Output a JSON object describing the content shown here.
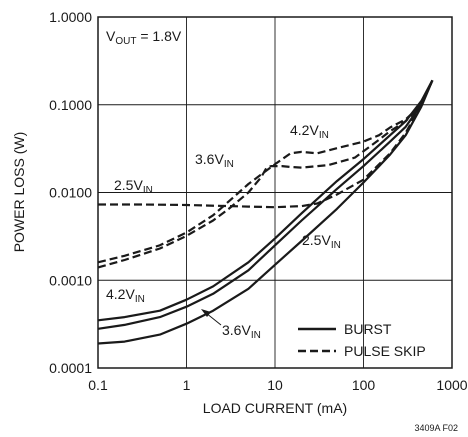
{
  "chart_data": {
    "type": "line",
    "title": "",
    "xlabel": "LOAD CURRENT (mA)",
    "ylabel": "POWER LOSS (W)",
    "x_scale": "log",
    "y_scale": "log",
    "xlim": [
      0.1,
      1000
    ],
    "ylim": [
      0.0001,
      1
    ],
    "x_ticks": [
      "0.1",
      "1",
      "10",
      "100",
      "1000"
    ],
    "y_ticks": [
      "0.0001",
      "0.0010",
      "0.0100",
      "0.1000",
      "1.0000"
    ],
    "grid": true,
    "line_color": "#1a1a1a",
    "condition": {
      "main": "V",
      "sub": "OUT",
      "rest": " = 1.8V"
    },
    "legend": {
      "placement": "bottom-right",
      "entries": [
        {
          "label": "BURST",
          "style": "solid"
        },
        {
          "label": "PULSE SKIP",
          "style": "dashed"
        }
      ]
    },
    "series": [
      {
        "mode": "BURST",
        "vin": "4.2V",
        "style": "solid",
        "points": [
          [
            0.1,
            0.00035
          ],
          [
            0.2,
            0.00038
          ],
          [
            0.5,
            0.00045
          ],
          [
            1,
            0.0006
          ],
          [
            2,
            0.00085
          ],
          [
            5,
            0.0016
          ],
          [
            10,
            0.003
          ],
          [
            20,
            0.0058
          ],
          [
            50,
            0.0135
          ],
          [
            100,
            0.024
          ],
          [
            200,
            0.045
          ],
          [
            300,
            0.065
          ],
          [
            450,
            0.11
          ],
          [
            600,
            0.19
          ]
        ]
      },
      {
        "mode": "BURST",
        "vin": "3.6V",
        "style": "solid",
        "points": [
          [
            0.1,
            0.00028
          ],
          [
            0.2,
            0.00031
          ],
          [
            0.5,
            0.00038
          ],
          [
            1,
            0.0005
          ],
          [
            2,
            0.0007
          ],
          [
            5,
            0.0013
          ],
          [
            10,
            0.0025
          ],
          [
            20,
            0.0048
          ],
          [
            50,
            0.011
          ],
          [
            100,
            0.02
          ],
          [
            200,
            0.038
          ],
          [
            300,
            0.056
          ],
          [
            450,
            0.1
          ],
          [
            600,
            0.19
          ]
        ]
      },
      {
        "mode": "BURST",
        "vin": "2.5V",
        "style": "solid",
        "points": [
          [
            0.1,
            0.00019
          ],
          [
            0.2,
            0.0002
          ],
          [
            0.5,
            0.00024
          ],
          [
            1,
            0.00032
          ],
          [
            2,
            0.00045
          ],
          [
            5,
            0.0008
          ],
          [
            10,
            0.0015
          ],
          [
            20,
            0.0028
          ],
          [
            50,
            0.0065
          ],
          [
            100,
            0.013
          ],
          [
            200,
            0.027
          ],
          [
            300,
            0.045
          ],
          [
            450,
            0.095
          ],
          [
            600,
            0.19
          ]
        ]
      },
      {
        "mode": "PULSE SKIP",
        "vin": "4.2V",
        "style": "dashed",
        "points": [
          [
            0.1,
            0.0016
          ],
          [
            0.2,
            0.0019
          ],
          [
            0.5,
            0.0025
          ],
          [
            1,
            0.0035
          ],
          [
            2,
            0.0055
          ],
          [
            5,
            0.0125
          ],
          [
            10,
            0.021
          ],
          [
            15,
            0.028
          ],
          [
            20,
            0.029
          ],
          [
            30,
            0.028
          ],
          [
            50,
            0.032
          ],
          [
            100,
            0.038
          ],
          [
            150,
            0.045
          ],
          [
            200,
            0.055
          ],
          [
            300,
            0.068
          ],
          [
            450,
            0.1
          ],
          [
            600,
            0.19
          ]
        ]
      },
      {
        "mode": "PULSE SKIP",
        "vin": "3.6V",
        "style": "dashed",
        "points": [
          [
            0.1,
            0.0014
          ],
          [
            0.2,
            0.0017
          ],
          [
            0.5,
            0.0023
          ],
          [
            1,
            0.0032
          ],
          [
            2,
            0.0048
          ],
          [
            3,
            0.0065
          ],
          [
            5,
            0.01
          ],
          [
            7,
            0.015
          ],
          [
            8,
            0.019
          ],
          [
            9,
            0.02
          ],
          [
            12,
            0.02
          ],
          [
            15,
            0.0195
          ],
          [
            20,
            0.0192
          ],
          [
            40,
            0.0205
          ],
          [
            80,
            0.025
          ],
          [
            150,
            0.04
          ],
          [
            200,
            0.05
          ],
          [
            300,
            0.065
          ],
          [
            450,
            0.1
          ],
          [
            600,
            0.19
          ]
        ]
      },
      {
        "mode": "PULSE SKIP",
        "vin": "2.5V",
        "style": "dashed",
        "points": [
          [
            0.1,
            0.0073
          ],
          [
            0.3,
            0.0073
          ],
          [
            1,
            0.0072
          ],
          [
            3,
            0.007
          ],
          [
            5,
            0.0069
          ],
          [
            10,
            0.0068
          ],
          [
            20,
            0.007
          ],
          [
            30,
            0.0075
          ],
          [
            50,
            0.0095
          ],
          [
            100,
            0.014
          ],
          [
            200,
            0.028
          ],
          [
            300,
            0.048
          ],
          [
            450,
            0.1
          ],
          [
            600,
            0.19
          ]
        ]
      }
    ],
    "annotations": [
      {
        "id": "vin-4.2-top",
        "main": "4.2V",
        "sub": "IN"
      },
      {
        "id": "vin-3.6-top",
        "main": "3.6V",
        "sub": "IN"
      },
      {
        "id": "vin-2.5-top",
        "main": "2.5V",
        "sub": "IN"
      },
      {
        "id": "vin-2.5-bottom",
        "main": "2.5V",
        "sub": "IN"
      },
      {
        "id": "vin-4.2-bottom",
        "main": "4.2V",
        "sub": "IN"
      },
      {
        "id": "vin-3.6-bottom",
        "main": "3.6V",
        "sub": "IN"
      }
    ],
    "figure_id": "3409A F02"
  }
}
